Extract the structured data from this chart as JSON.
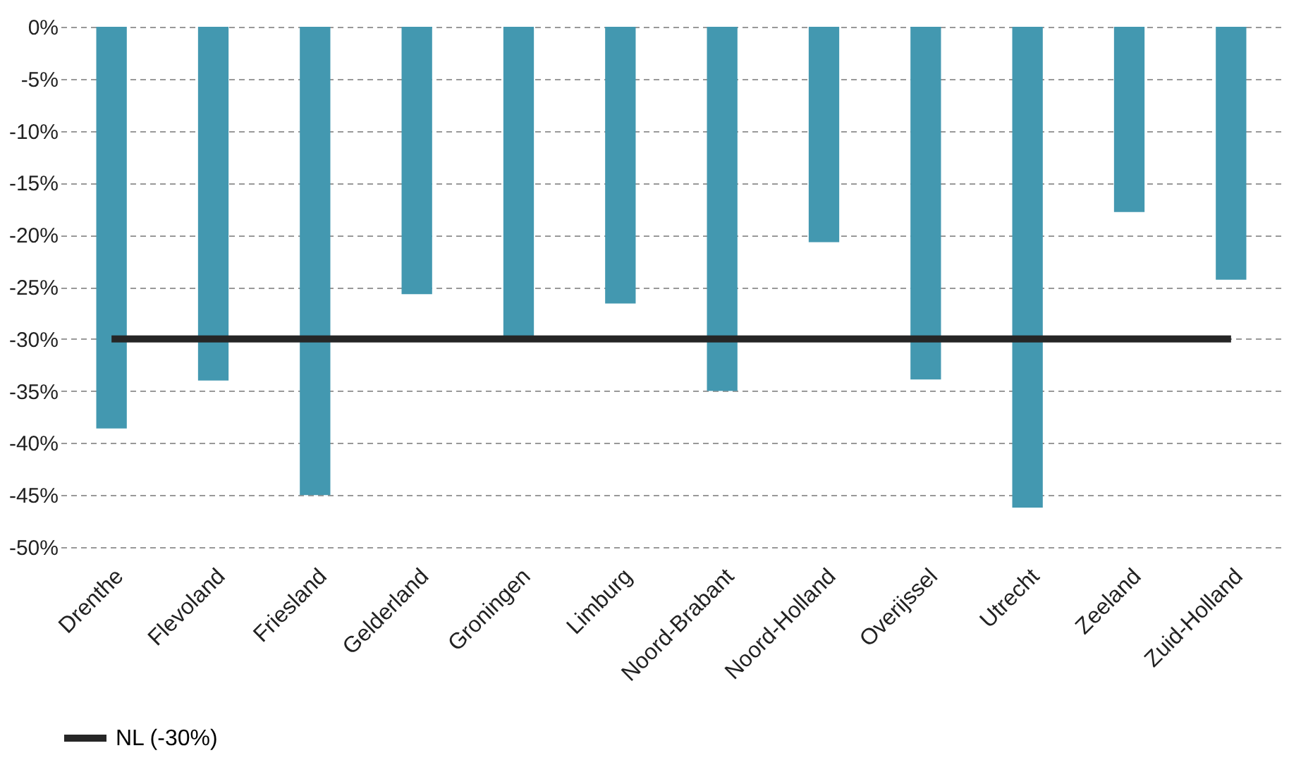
{
  "chart_data": {
    "type": "bar",
    "categories": [
      "Drenthe",
      "Flevoland",
      "Friesland",
      "Gelderland",
      "Groningen",
      "Limburg",
      "Noord-Brabant",
      "Noord-Holland",
      "Overijssel",
      "Utrecht",
      "Zeeland",
      "Zuid-Holland"
    ],
    "series": [
      {
        "color": "#4398b0",
        "values": [
          -38.6,
          -34.0,
          -45.0,
          -25.7,
          -29.8,
          -26.6,
          -35.0,
          -20.7,
          -33.9,
          -46.2,
          -17.8,
          -24.3
        ]
      },
      {
        "type": "line",
        "name": "NL (-30%)",
        "color": "#262626",
        "values": [
          -30,
          -30,
          -30,
          -30,
          -30,
          -30,
          -30,
          -30,
          -30,
          -30,
          -30,
          -30
        ]
      }
    ],
    "ylim": [
      -50,
      0
    ],
    "yticks": [
      {
        "value": 0,
        "label": "0%"
      },
      {
        "value": -5,
        "label": "-5%"
      },
      {
        "value": -10,
        "label": "-10%"
      },
      {
        "value": -15,
        "label": "-15%"
      },
      {
        "value": -20,
        "label": "-20%"
      },
      {
        "value": -25,
        "label": "-25%"
      },
      {
        "value": -30,
        "label": "-30%"
      },
      {
        "value": -35,
        "label": "-35%"
      },
      {
        "value": -40,
        "label": "-40%"
      },
      {
        "value": -45,
        "label": "-45%"
      },
      {
        "value": -50,
        "label": "-50%"
      }
    ],
    "grid": "y",
    "legend": "bottom",
    "line_style": "solid",
    "marker": "none"
  }
}
